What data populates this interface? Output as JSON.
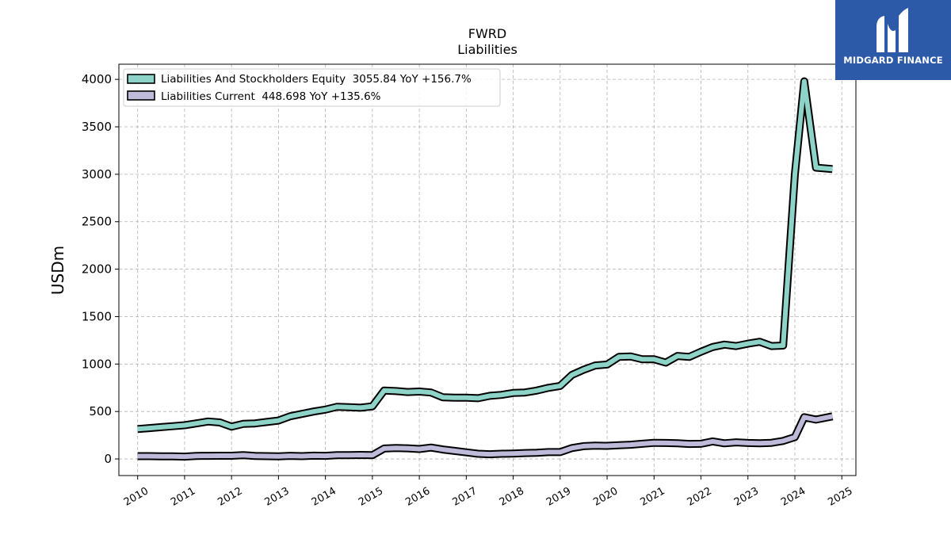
{
  "logo": {
    "text": "MIDGARD FINANCE",
    "background": "#2d5aa8"
  },
  "chart_data": {
    "type": "line",
    "title": "FWRD",
    "subtitle": "Liabilities",
    "xlabel": "",
    "ylabel": "USDm",
    "xlim": [
      2009.6,
      2025.3
    ],
    "ylim": [
      -175,
      4160
    ],
    "x_ticks": [
      "2010",
      "2011",
      "2012",
      "2013",
      "2014",
      "2015",
      "2016",
      "2017",
      "2018",
      "2019",
      "2020",
      "2021",
      "2022",
      "2023",
      "2024",
      "2025"
    ],
    "y_ticks": [
      0,
      500,
      1000,
      1500,
      2000,
      2500,
      3000,
      3500,
      4000
    ],
    "grid": true,
    "legend_position": "top-left",
    "series": [
      {
        "name": "Liabilities And Stockholders Equity  3055.84 YoY +156.7%",
        "color": "#8dd3c7",
        "points": [
          [
            2010.0,
            315
          ],
          [
            2010.25,
            325
          ],
          [
            2010.5,
            335
          ],
          [
            2010.75,
            345
          ],
          [
            2011.0,
            355
          ],
          [
            2011.25,
            375
          ],
          [
            2011.5,
            395
          ],
          [
            2011.75,
            385
          ],
          [
            2012.0,
            340
          ],
          [
            2012.25,
            370
          ],
          [
            2012.5,
            375
          ],
          [
            2012.75,
            390
          ],
          [
            2013.0,
            405
          ],
          [
            2013.25,
            450
          ],
          [
            2013.5,
            475
          ],
          [
            2013.75,
            500
          ],
          [
            2014.0,
            520
          ],
          [
            2014.25,
            550
          ],
          [
            2014.5,
            545
          ],
          [
            2014.75,
            540
          ],
          [
            2015.0,
            555
          ],
          [
            2015.25,
            720
          ],
          [
            2015.5,
            715
          ],
          [
            2015.75,
            705
          ],
          [
            2016.0,
            710
          ],
          [
            2016.25,
            700
          ],
          [
            2016.5,
            650
          ],
          [
            2016.75,
            645
          ],
          [
            2017.0,
            645
          ],
          [
            2017.25,
            640
          ],
          [
            2017.5,
            665
          ],
          [
            2017.75,
            675
          ],
          [
            2018.0,
            695
          ],
          [
            2018.25,
            700
          ],
          [
            2018.5,
            720
          ],
          [
            2018.75,
            750
          ],
          [
            2019.0,
            770
          ],
          [
            2019.25,
            885
          ],
          [
            2019.5,
            940
          ],
          [
            2019.75,
            985
          ],
          [
            2020.0,
            995
          ],
          [
            2020.25,
            1075
          ],
          [
            2020.5,
            1080
          ],
          [
            2020.75,
            1050
          ],
          [
            2021.0,
            1050
          ],
          [
            2021.25,
            1015
          ],
          [
            2021.5,
            1085
          ],
          [
            2021.75,
            1075
          ],
          [
            2022.0,
            1130
          ],
          [
            2022.25,
            1180
          ],
          [
            2022.5,
            1205
          ],
          [
            2022.75,
            1190
          ],
          [
            2023.0,
            1215
          ],
          [
            2023.25,
            1235
          ],
          [
            2023.5,
            1190
          ],
          [
            2023.75,
            1195
          ],
          [
            2024.0,
            3000
          ],
          [
            2024.2,
            3980
          ],
          [
            2024.45,
            3070
          ],
          [
            2024.8,
            3055
          ]
        ]
      },
      {
        "name": "Liabilities Current  448.698 YoY +135.6%",
        "color": "#bebada",
        "points": [
          [
            2010.0,
            30
          ],
          [
            2010.25,
            30
          ],
          [
            2010.5,
            28
          ],
          [
            2010.75,
            27
          ],
          [
            2011.0,
            25
          ],
          [
            2011.25,
            32
          ],
          [
            2011.5,
            33
          ],
          [
            2011.75,
            34
          ],
          [
            2012.0,
            34
          ],
          [
            2012.25,
            40
          ],
          [
            2012.5,
            32
          ],
          [
            2012.75,
            30
          ],
          [
            2013.0,
            28
          ],
          [
            2013.25,
            33
          ],
          [
            2013.5,
            30
          ],
          [
            2013.75,
            35
          ],
          [
            2014.0,
            33
          ],
          [
            2014.25,
            40
          ],
          [
            2014.5,
            40
          ],
          [
            2014.75,
            42
          ],
          [
            2015.0,
            40
          ],
          [
            2015.25,
            110
          ],
          [
            2015.5,
            115
          ],
          [
            2015.75,
            112
          ],
          [
            2016.0,
            105
          ],
          [
            2016.25,
            120
          ],
          [
            2016.5,
            100
          ],
          [
            2016.75,
            85
          ],
          [
            2017.0,
            70
          ],
          [
            2017.25,
            55
          ],
          [
            2017.5,
            50
          ],
          [
            2017.75,
            55
          ],
          [
            2018.0,
            57
          ],
          [
            2018.25,
            62
          ],
          [
            2018.5,
            65
          ],
          [
            2018.75,
            72
          ],
          [
            2019.0,
            72
          ],
          [
            2019.25,
            115
          ],
          [
            2019.5,
            135
          ],
          [
            2019.75,
            140
          ],
          [
            2020.0,
            138
          ],
          [
            2020.25,
            145
          ],
          [
            2020.5,
            150
          ],
          [
            2020.75,
            160
          ],
          [
            2021.0,
            170
          ],
          [
            2021.25,
            168
          ],
          [
            2021.5,
            165
          ],
          [
            2021.75,
            158
          ],
          [
            2022.0,
            160
          ],
          [
            2022.25,
            185
          ],
          [
            2022.5,
            165
          ],
          [
            2022.75,
            175
          ],
          [
            2023.0,
            168
          ],
          [
            2023.25,
            165
          ],
          [
            2023.5,
            170
          ],
          [
            2023.75,
            190
          ],
          [
            2024.0,
            230
          ],
          [
            2024.2,
            440
          ],
          [
            2024.45,
            415
          ],
          [
            2024.8,
            449
          ]
        ]
      }
    ]
  }
}
